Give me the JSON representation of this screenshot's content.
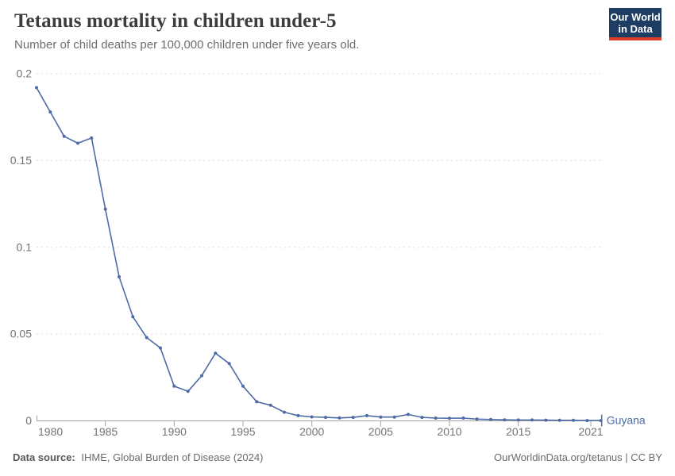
{
  "header": {
    "title": "Tetanus mortality in children under-5",
    "subtitle": "Number of child deaths per 100,000 children under five years old.",
    "logo": {
      "line1": "Our World",
      "line2": "in Data"
    }
  },
  "chart_data": {
    "type": "line",
    "title": "Tetanus mortality in children under-5",
    "xlabel": "",
    "ylabel": "Number of child deaths per 100,000 children under five years old",
    "xlim": [
      1980,
      2021
    ],
    "ylim": [
      0,
      0.2
    ],
    "yticks": [
      0,
      0.05,
      0.1,
      0.15,
      0.2
    ],
    "ytick_labels": [
      "0",
      "0.05",
      "0.1",
      "0.15",
      "0.2"
    ],
    "xticks": [
      1980,
      1985,
      1990,
      1995,
      2000,
      2005,
      2010,
      2015,
      2021
    ],
    "xtick_labels": [
      "1980",
      "1985",
      "1990",
      "1995",
      "2000",
      "2005",
      "2010",
      "2015",
      "2021"
    ],
    "grid": "horizontal-dashed",
    "legend_position": "end-of-line",
    "series": [
      {
        "name": "Guyana",
        "x": [
          1980,
          1981,
          1982,
          1983,
          1984,
          1985,
          1986,
          1987,
          1988,
          1989,
          1990,
          1991,
          1992,
          1993,
          1994,
          1995,
          1996,
          1997,
          1998,
          1999,
          2000,
          2001,
          2002,
          2003,
          2004,
          2005,
          2006,
          2007,
          2008,
          2009,
          2010,
          2011,
          2012,
          2013,
          2014,
          2015,
          2016,
          2017,
          2018,
          2019,
          2020,
          2021
        ],
        "values": [
          0.192,
          0.178,
          0.164,
          0.16,
          0.163,
          0.122,
          0.083,
          0.06,
          0.048,
          0.042,
          0.02,
          0.017,
          0.026,
          0.039,
          0.033,
          0.02,
          0.011,
          0.009,
          0.005,
          0.003,
          0.0023,
          0.002,
          0.0017,
          0.002,
          0.003,
          0.0022,
          0.0022,
          0.0037,
          0.002,
          0.0016,
          0.0015,
          0.0016,
          0.001,
          0.0008,
          0.0006,
          0.0005,
          0.0005,
          0.0004,
          0.0003,
          0.0003,
          0.0002,
          0.0002
        ]
      }
    ]
  },
  "footer": {
    "source_bold": "Data source:",
    "source_text": "IHME, Global Burden of Disease (2024)",
    "credit": "OurWorldinData.org/tetanus | CC BY"
  },
  "colors": {
    "line": "#4d6ba5",
    "series_label": "#4d6ba5",
    "grid": "#dddddd",
    "axis": "#a5a5a5",
    "tick_label": "#737373",
    "title": "#3d3d3d",
    "subtitle": "#6e6e6e",
    "footer": "#6b6b6b",
    "logo_bg": "#1d3d63",
    "logo_accent": "#dc3c2c"
  }
}
